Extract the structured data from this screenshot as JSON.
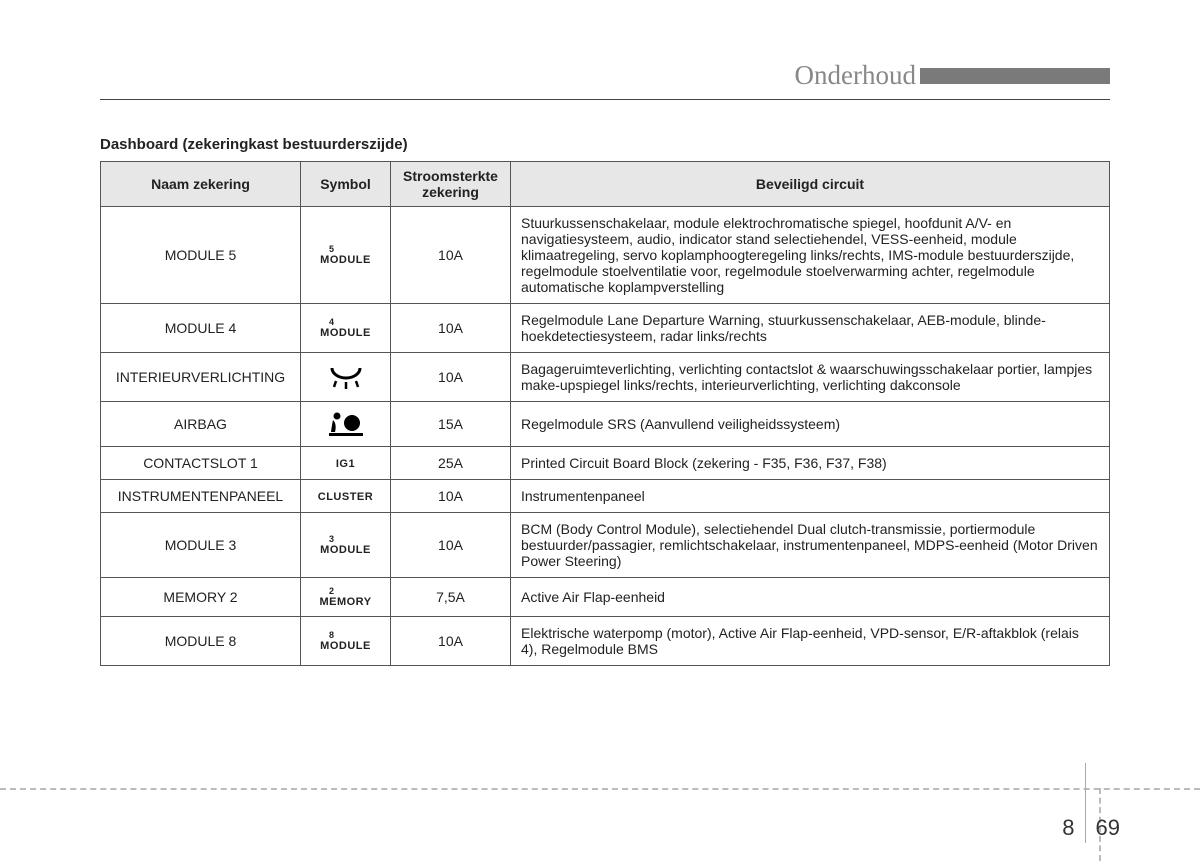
{
  "header": {
    "section_title": "Onderhoud"
  },
  "subtitle": "Dashboard (zekeringkast bestuurderszijde)",
  "table": {
    "columns": [
      "Naam zekering",
      "Symbol",
      "Stroomsterkte zekering",
      "Beveiligd circuit"
    ],
    "rows": [
      {
        "name": "MODULE 5",
        "symbol_sup": "5",
        "symbol_main": "MODULE",
        "symbol_type": "text",
        "amp": "10A",
        "circuit": "Stuurkussenschakelaar, module elektrochromatische spiegel, hoofdunit A/V- en navigatiesysteem, audio, indicator stand selectiehendel, VESS-eenheid, module klimaatregeling, servo koplamphoogteregeling links/rechts, IMS-module bestuurderszijde, regelmodule stoelventilatie voor, regelmodule stoelverwarming achter, regelmodule automatische koplampverstelling"
      },
      {
        "name": "MODULE 4",
        "symbol_sup": "4",
        "symbol_main": "MODULE",
        "symbol_type": "text",
        "amp": "10A",
        "circuit": "Regelmodule Lane Departure Warning, stuurkussenschakelaar, AEB-module, blinde-hoekdetectiesysteem, radar links/rechts"
      },
      {
        "name": "INTERIEURVERLICHTING",
        "symbol_type": "interior-light",
        "symbol_sup": "",
        "symbol_main": "",
        "amp": "10A",
        "circuit": "Bagageruimteverlichting, verlichting contactslot & waarschuwingsschakelaar portier, lampjes make-upspiegel links/rechts, interieurverlichting, verlichting dakconsole"
      },
      {
        "name": "AIRBAG",
        "symbol_type": "airbag",
        "symbol_sup": "",
        "symbol_main": "",
        "amp": "15A",
        "circuit": "Regelmodule SRS (Aanvullend veiligheidssysteem)"
      },
      {
        "name": "CONTACTSLOT 1",
        "symbol_sup": "",
        "symbol_main": "IG1",
        "symbol_type": "text",
        "amp": "25A",
        "circuit": "Printed Circuit Board Block (zekering - F35, F36, F37, F38)"
      },
      {
        "name": "INSTRUMENTENPANEEL",
        "symbol_sup": "",
        "symbol_main": "CLUSTER",
        "symbol_type": "text",
        "amp": "10A",
        "circuit": "Instrumentenpaneel"
      },
      {
        "name": "MODULE 3",
        "symbol_sup": "3",
        "symbol_main": "MODULE",
        "symbol_type": "text",
        "amp": "10A",
        "circuit": "BCM (Body Control Module), selectiehendel Dual clutch-transmissie, portiermodule bestuurder/passagier, remlichtschakelaar, instrumentenpaneel, MDPS-eenheid (Motor Driven Power Steering)"
      },
      {
        "name": "MEMORY 2",
        "symbol_sup": "2",
        "symbol_main": "MEMORY",
        "symbol_type": "text",
        "amp": "7,5A",
        "circuit": "Active Air Flap-eenheid"
      },
      {
        "name": "MODULE 8",
        "symbol_sup": "8",
        "symbol_main": "MODULE",
        "symbol_type": "text",
        "amp": "10A",
        "circuit": "Elektrische waterpomp (motor), Active Air Flap-eenheid, VPD-sensor, E/R-aftakblok (relais 4), Regelmodule BMS"
      }
    ]
  },
  "footer": {
    "chapter": "8",
    "page": "69"
  }
}
